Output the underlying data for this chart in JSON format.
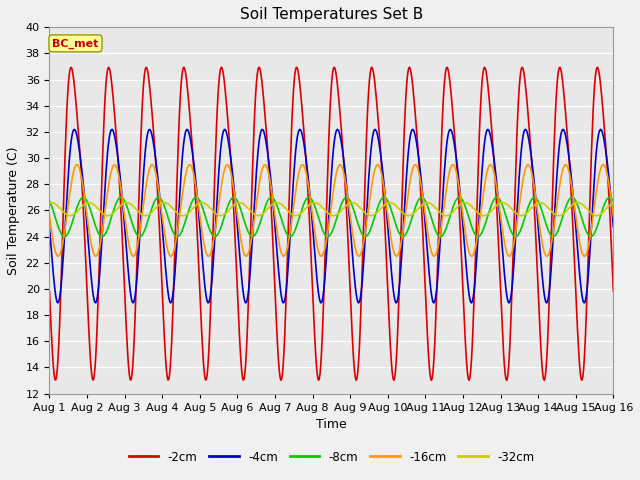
{
  "title": "Soil Temperatures Set B",
  "xlabel": "Time",
  "ylabel": "Soil Temperature (C)",
  "xlim": [
    0,
    15
  ],
  "ylim": [
    12,
    40
  ],
  "yticks": [
    12,
    14,
    16,
    18,
    20,
    22,
    24,
    26,
    28,
    30,
    32,
    34,
    36,
    38,
    40
  ],
  "xtick_labels": [
    "Aug 1",
    "Aug 2",
    "Aug 3",
    "Aug 4",
    "Aug 5",
    "Aug 6",
    "Aug 7",
    "Aug 8",
    "Aug 9",
    "Aug 10",
    "Aug 11",
    "Aug 12",
    "Aug 13",
    "Aug 14",
    "Aug 15",
    "Aug 16"
  ],
  "series_order": [
    "-2cm",
    "-4cm",
    "-8cm",
    "-16cm",
    "-32cm"
  ],
  "series": {
    "-2cm": {
      "color": "#dd0000",
      "linewidth": 1.2,
      "amplitude": 11.5,
      "mean": 26.0,
      "phase_shift": 0.38
    },
    "-4cm": {
      "color": "#0000cc",
      "linewidth": 1.2,
      "amplitude": 6.5,
      "mean": 26.0,
      "phase_shift": 0.45
    },
    "-8cm": {
      "color": "#00cc00",
      "linewidth": 1.2,
      "amplitude": 1.5,
      "mean": 25.5,
      "phase_shift": 0.65
    },
    "-16cm": {
      "color": "#ff9900",
      "linewidth": 1.2,
      "amplitude": 3.5,
      "mean": 26.0,
      "phase_shift": 0.48
    },
    "-32cm": {
      "color": "#cccc00",
      "linewidth": 1.2,
      "amplitude": 0.5,
      "mean": 26.1,
      "phase_shift": 0.8
    }
  },
  "annotation_text": "BC_met",
  "annotation_color": "#cc0000",
  "annotation_bg": "#ffff99",
  "plot_bg": "#e8e8e8",
  "fig_bg": "#f0f0f0",
  "grid_color": "#ffffff",
  "title_fontsize": 11,
  "tick_fontsize": 8,
  "label_fontsize": 9
}
